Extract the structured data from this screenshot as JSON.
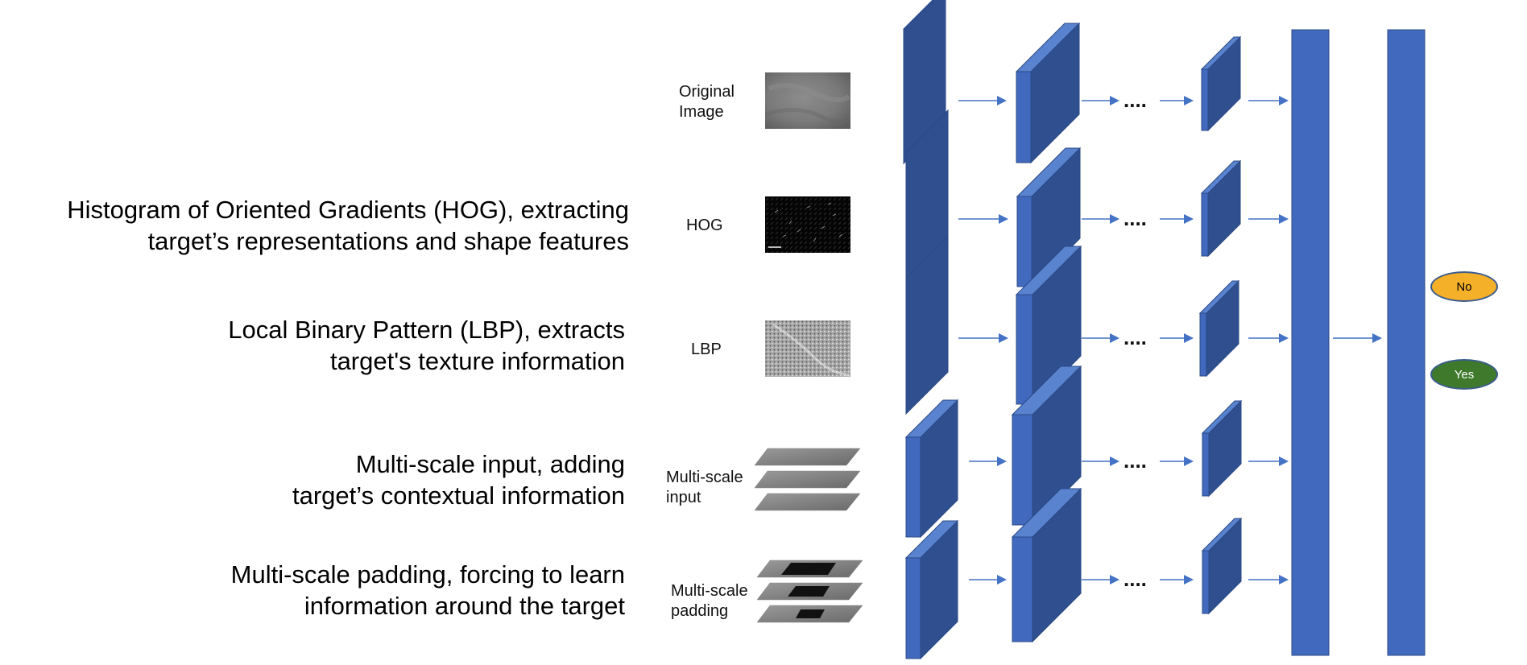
{
  "descriptions": [
    {
      "line1": "Histogram of Oriented Gradients (HOG), extracting",
      "line2": "target’s representations and shape features"
    },
    {
      "line1": "Local Binary Pattern (LBP), extracts",
      "line2": "target's texture information"
    },
    {
      "line1": "Multi-scale input, adding",
      "line2": "target’s contextual information"
    },
    {
      "line1": "Multi-scale padding, forcing to learn",
      "line2": "information around the target"
    }
  ],
  "inputs": [
    {
      "line1": "Original",
      "line2": "Image"
    },
    {
      "line1": "HOG",
      "line2": ""
    },
    {
      "line1": "LBP",
      "line2": ""
    },
    {
      "line1": "Multi-scale",
      "line2": "input"
    },
    {
      "line1": "Multi-scale",
      "line2": "padding"
    }
  ],
  "ellipsis": "....",
  "outputs": {
    "no": "No",
    "yes": "Yes"
  },
  "colors": {
    "layer_front": "#4169be",
    "layer_side": "#2f4f8f",
    "layer_top": "#5a83cf",
    "arrow": "#4472c4",
    "no_fill": "#f5b02a",
    "yes_fill": "#3f7a2c"
  }
}
